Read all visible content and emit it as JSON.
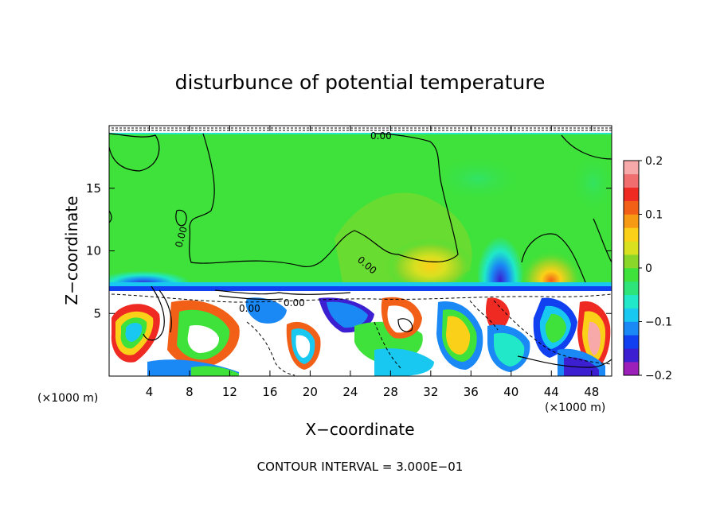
{
  "chart_data": {
    "type": "heatmap",
    "title": "disturbunce of potential temperature",
    "xlabel": "X−coordinate",
    "ylabel": "Z−coordinate",
    "x_unit_left": "(×1000 m)",
    "x_unit_right": "(×1000 m)",
    "xlim": [
      0,
      50
    ],
    "ylim": [
      0,
      20
    ],
    "x_ticks": [
      4,
      8,
      12,
      16,
      20,
      24,
      28,
      32,
      36,
      40,
      44,
      48
    ],
    "y_ticks": [
      5,
      10,
      15
    ],
    "contour_label": "0.00",
    "footer": "CONTOUR INTERVAL = 3.000E−01",
    "colorbar": {
      "range": [
        -0.2,
        0.2
      ],
      "tick_values": [
        0.2,
        0.1,
        0,
        -0.1,
        -0.2
      ],
      "tick_labels": [
        "0.2",
        "0.1",
        "0",
        "−0.1",
        "−0.2"
      ],
      "colors": [
        "#9b1fb8",
        "#3b1fd0",
        "#1040f0",
        "#1a88f5",
        "#18c8f0",
        "#20e8c8",
        "#2ce47a",
        "#3ee23a",
        "#8ad72a",
        "#d8e020",
        "#fbd018",
        "#f59a12",
        "#f26018",
        "#ee2a22",
        "#f06e6e",
        "#f7a8a8"
      ]
    },
    "regions": [
      {
        "name": "upper-layer",
        "z": [
          6.8,
          19.3
        ],
        "value": 0.0
      },
      {
        "name": "warm-anomaly-x30",
        "x": 31.5,
        "z": 8.5,
        "value": 0.08
      },
      {
        "name": "warm-anomaly-x44",
        "x": 43.5,
        "z": 8.0,
        "value": 0.11
      },
      {
        "name": "cold-anomaly-x39",
        "x": 38.8,
        "z": 9.0,
        "value": -0.13
      },
      {
        "name": "interface",
        "z": 6.8,
        "value": -0.15
      },
      {
        "name": "lower-layer",
        "z": [
          0,
          6.8
        ],
        "value": "mixed"
      }
    ]
  }
}
